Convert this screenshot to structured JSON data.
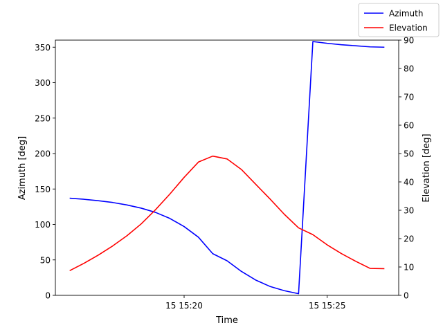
{
  "chart_data": {
    "type": "line",
    "title": "",
    "xlabel": "Time",
    "ylabel_left": "Azimuth [deg]",
    "ylabel_right": "Elevation [deg]",
    "xlim": [
      "15 15:15:30",
      "15 15:27:30"
    ],
    "ylim_left": [
      0,
      360
    ],
    "ylim_right": [
      0,
      90
    ],
    "x_ticks": [
      {
        "label": "15 15:20",
        "value": "15 15:20:00"
      },
      {
        "label": "15 15:25",
        "value": "15 15:25:00"
      }
    ],
    "y_ticks_left": [
      0,
      50,
      100,
      150,
      200,
      250,
      300,
      350
    ],
    "y_ticks_right": [
      0,
      10,
      20,
      30,
      40,
      50,
      60,
      70,
      80,
      90
    ],
    "grid": false,
    "legend": {
      "position": "top-right"
    },
    "series": [
      {
        "name": "Azimuth",
        "axis": "left",
        "color": "#0000ff",
        "x": [
          "15 15:16:00",
          "15 15:16:30",
          "15 15:17:00",
          "15 15:17:30",
          "15 15:18:00",
          "15 15:18:30",
          "15 15:19:00",
          "15 15:19:30",
          "15 15:20:00",
          "15 15:20:30",
          "15 15:21:00",
          "15 15:21:30",
          "15 15:22:00",
          "15 15:22:30",
          "15 15:23:00",
          "15 15:23:30",
          "15 15:24:00",
          "15 15:24:30",
          "15 15:25:00",
          "15 15:25:30",
          "15 15:26:00",
          "15 15:26:30",
          "15 15:27:00"
        ],
        "y": [
          137,
          135.5,
          133.5,
          131,
          127.5,
          123,
          117,
          108.5,
          97,
          82,
          58.8,
          48.8,
          33.8,
          21.6,
          12.6,
          6.6,
          2.3,
          358,
          355.5,
          353.5,
          352,
          350.5,
          350
        ]
      },
      {
        "name": "Elevation",
        "axis": "right",
        "color": "#ff0000",
        "x": [
          "15 15:16:00",
          "15 15:16:30",
          "15 15:17:00",
          "15 15:17:30",
          "15 15:18:00",
          "15 15:18:30",
          "15 15:19:00",
          "15 15:19:30",
          "15 15:20:00",
          "15 15:20:30",
          "15 15:21:00",
          "15 15:21:30",
          "15 15:22:00",
          "15 15:22:30",
          "15 15:23:00",
          "15 15:23:30",
          "15 15:24:00",
          "15 15:24:30",
          "15 15:25:00",
          "15 15:25:30",
          "15 15:26:00",
          "15 15:26:30",
          "15 15:27:00"
        ],
        "y": [
          8.7,
          11.3,
          14.2,
          17.4,
          21.0,
          25.2,
          30.2,
          35.7,
          41.6,
          47.0,
          49.1,
          48.1,
          44.4,
          39.2,
          34.0,
          28.6,
          23.8,
          21.4,
          17.8,
          14.7,
          12.0,
          9.5,
          9.4
        ]
      }
    ]
  }
}
